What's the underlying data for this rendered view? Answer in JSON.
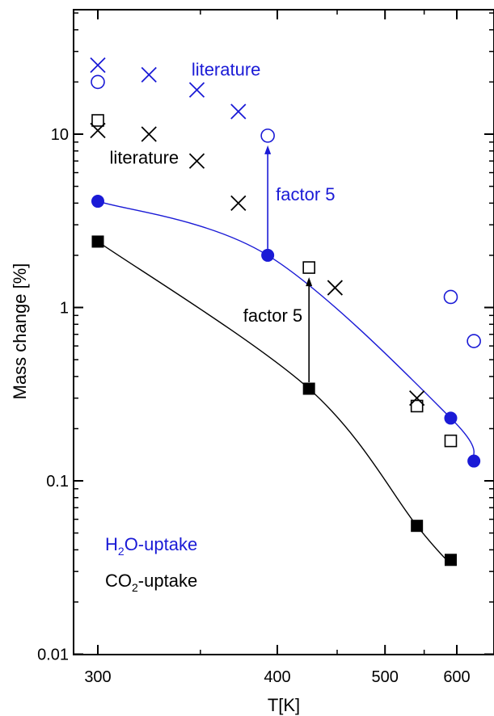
{
  "colors": {
    "blue": "#1a1ad6",
    "black": "#000000"
  },
  "chart_data": {
    "type": "scatter",
    "xlabel": "T[K]",
    "ylabel": "Mass change [%]",
    "xscale": "reciprocal",
    "yscale": "log",
    "xlim": [
      290,
      640
    ],
    "ylim": [
      0.01,
      50
    ],
    "xticks": [
      300,
      400,
      500,
      600
    ],
    "yticks": [
      0.01,
      0.1,
      1,
      10
    ],
    "ytick_labels": [
      "0.01",
      "0.1",
      "1",
      "10"
    ],
    "legend": "bottom-left",
    "series": [
      {
        "name": "H2O-uptake",
        "marker": "filled-circle",
        "color": "#1a1ad6",
        "points": [
          [
            300,
            4.1
          ],
          [
            393,
            2.0
          ],
          [
            590,
            0.23
          ],
          [
            630,
            0.13
          ]
        ]
      },
      {
        "name": "CO2-uptake",
        "marker": "filled-square",
        "color": "#000000",
        "points": [
          [
            300,
            2.4
          ],
          [
            425,
            0.34
          ],
          [
            540,
            0.055
          ],
          [
            590,
            0.035
          ]
        ]
      },
      {
        "marker": "open-circle",
        "color": "#1a1ad6",
        "points": [
          [
            300,
            20
          ],
          [
            393,
            9.8
          ],
          [
            590,
            1.15
          ],
          [
            630,
            0.64
          ]
        ]
      },
      {
        "marker": "cross",
        "color": "#1a1ad6",
        "points": [
          [
            300,
            25
          ],
          [
            323,
            22
          ],
          [
            348,
            18
          ],
          [
            373,
            13.5
          ]
        ]
      },
      {
        "marker": "open-square",
        "color": "#000000",
        "points": [
          [
            300,
            12
          ],
          [
            425,
            1.7
          ],
          [
            540,
            0.27
          ],
          [
            590,
            0.17
          ]
        ]
      },
      {
        "marker": "cross",
        "color": "#000000",
        "points": [
          [
            300,
            10.5
          ],
          [
            323,
            10
          ],
          [
            348,
            7
          ],
          [
            373,
            4
          ],
          [
            448,
            1.3
          ],
          [
            540,
            0.3
          ]
        ]
      }
    ],
    "fits": [
      {
        "color": "#1a1ad6",
        "points": [
          [
            300,
            4.1
          ],
          [
            393,
            2.0
          ],
          [
            590,
            0.23
          ],
          [
            630,
            0.13
          ]
        ]
      },
      {
        "color": "#000000",
        "points": [
          [
            300,
            2.4
          ],
          [
            425,
            0.34
          ],
          [
            540,
            0.055
          ],
          [
            590,
            0.033
          ]
        ]
      }
    ],
    "arrows": [
      {
        "label": "factor 5",
        "color": "#1a1ad6",
        "x": 393,
        "from": 2.0,
        "to": 9.8
      },
      {
        "label": "factor 5",
        "color": "#000000",
        "x": 425,
        "from": 0.34,
        "to": 1.7
      }
    ],
    "annotations": [
      {
        "text": "literature",
        "color": "#1a1ad6",
        "x": 345,
        "y": 23.5
      },
      {
        "text": "literature",
        "color": "#000000",
        "x": 305,
        "y": 7.3
      }
    ]
  },
  "legend": {
    "h2o": {
      "pre": "H",
      "sub": "2",
      "post": "O-uptake",
      "color": "#1a1ad6"
    },
    "co2": {
      "pre": "CO",
      "sub": "2",
      "post": "-uptake",
      "color": "#000000"
    }
  }
}
